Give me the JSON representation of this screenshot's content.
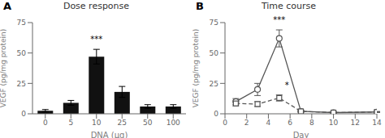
{
  "chart_data": [
    {
      "type": "bar",
      "title": "Dose response",
      "xlabel": "DNA (μg)",
      "ylabel": "VEGF (pg/mg protein)",
      "categories": [
        "0",
        "5",
        "10",
        "25",
        "50",
        "100"
      ],
      "values": [
        2.5,
        9.0,
        47.0,
        18.0,
        6.0,
        6.0
      ],
      "errors": [
        1.0,
        2.0,
        6.0,
        4.5,
        1.5,
        1.5
      ],
      "color": "#111111",
      "ylim": [
        0,
        75
      ],
      "yticks": [
        0,
        25,
        50,
        75
      ],
      "grid": false,
      "annotations": [
        {
          "text": "A"
        },
        {
          "text": "***",
          "x": "10",
          "y": 55
        }
      ]
    },
    {
      "type": "line",
      "title": "Time course",
      "xlabel": "Day",
      "ylabel": "VEGF (pg/mg protein)",
      "x": [
        1,
        3,
        5,
        7,
        10,
        14
      ],
      "series": [
        {
          "color": "#555555",
          "marker": "circle",
          "line_style": "solid",
          "values": [
            10.0,
            20.0,
            62.0,
            2.0,
            1.0,
            1.5
          ],
          "errors": [
            2.5,
            5.0,
            7.0,
            0.5,
            0.3,
            0.3
          ]
        },
        {
          "color": "#555555",
          "marker": "square",
          "line_style": "dashed",
          "values": [
            8.5,
            8.0,
            13.0,
            2.0,
            1.0,
            1.5
          ],
          "errors": [
            2.0,
            2.0,
            2.5,
            0.5,
            0.3,
            0.3
          ]
        }
      ],
      "xlim": [
        0,
        14
      ],
      "xticks": [
        0,
        2,
        4,
        6,
        8,
        10,
        12,
        14
      ],
      "ylim": [
        0,
        75
      ],
      "yticks": [
        0,
        25,
        50,
        75
      ],
      "grid": false,
      "annotations": [
        {
          "text": "B"
        },
        {
          "text": "***",
          "x": 5,
          "y": 71
        },
        {
          "text": "*",
          "x": 5.7,
          "y": 17
        }
      ]
    }
  ]
}
